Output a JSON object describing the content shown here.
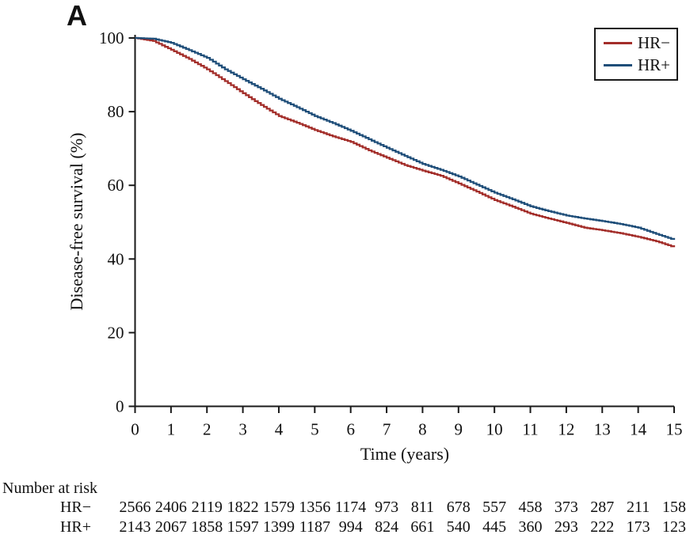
{
  "panel_label": "A",
  "chart_data": {
    "type": "line",
    "subtype": "kaplan-meier-step",
    "title": "",
    "xlabel": "Time (years)",
    "ylabel": "Disease-free survival (%)",
    "xlim": [
      0,
      15
    ],
    "ylim": [
      0,
      100
    ],
    "x_ticks": [
      0,
      1,
      2,
      3,
      4,
      5,
      6,
      7,
      8,
      9,
      10,
      11,
      12,
      13,
      14,
      15
    ],
    "y_ticks": [
      0,
      20,
      40,
      60,
      80,
      100
    ],
    "grid": false,
    "legend_position": "top-right",
    "x": [
      0,
      0.5,
      1,
      1.5,
      2,
      2.5,
      3,
      3.5,
      4,
      4.5,
      5,
      5.5,
      6,
      6.5,
      7,
      7.5,
      8,
      8.5,
      9,
      9.5,
      10,
      10.5,
      11,
      11.5,
      12,
      12.5,
      13,
      13.5,
      14,
      14.5,
      15
    ],
    "series": [
      {
        "name": "HR−",
        "color": "#a32e2a",
        "values": [
          100,
          99.2,
          96.8,
          94.3,
          91.5,
          88.3,
          85.0,
          81.8,
          78.8,
          77.0,
          75.0,
          73.3,
          71.8,
          69.5,
          67.5,
          65.5,
          64.0,
          62.6,
          60.5,
          58.3,
          56.0,
          54.2,
          52.3,
          51.0,
          49.8,
          48.5,
          47.8,
          47.0,
          46.0,
          44.8,
          43.2
        ]
      },
      {
        "name": "HR+",
        "color": "#1f4e79",
        "values": [
          100,
          99.8,
          98.7,
          96.7,
          94.6,
          91.5,
          88.8,
          86.2,
          83.5,
          81.2,
          78.8,
          76.9,
          74.8,
          72.5,
          70.2,
          68.0,
          65.8,
          64.2,
          62.4,
          60.2,
          58.0,
          56.2,
          54.3,
          53.0,
          51.8,
          51.0,
          50.3,
          49.5,
          48.5,
          46.8,
          45.2
        ]
      }
    ]
  },
  "risk_table": {
    "title": "Number at risk",
    "time_points": [
      0,
      1,
      2,
      3,
      4,
      5,
      6,
      7,
      8,
      9,
      10,
      11,
      12,
      13,
      14,
      15
    ],
    "rows": [
      {
        "label": "HR−",
        "counts": [
          2566,
          2406,
          2119,
          1822,
          1579,
          1356,
          1174,
          973,
          811,
          678,
          557,
          458,
          373,
          287,
          211,
          158
        ]
      },
      {
        "label": "HR+",
        "counts": [
          2143,
          2067,
          1858,
          1597,
          1399,
          1187,
          994,
          824,
          661,
          540,
          445,
          360,
          293,
          222,
          173,
          123
        ]
      }
    ]
  },
  "colors": {
    "axis": "#1a1a1a",
    "background": "#ffffff"
  }
}
